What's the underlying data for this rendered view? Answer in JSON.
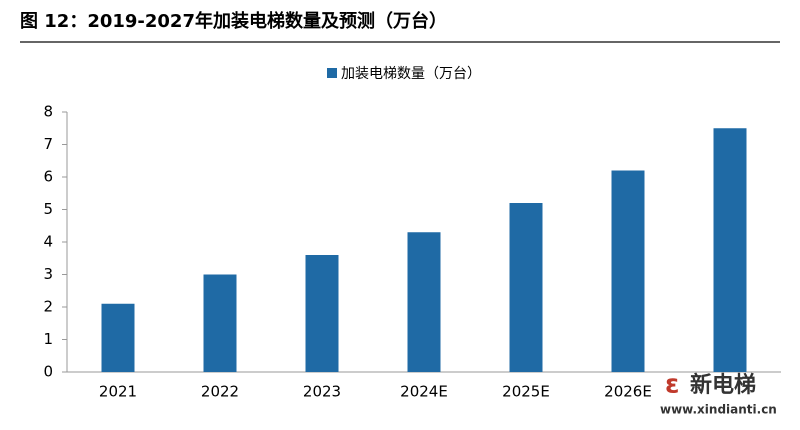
{
  "chart_data": {
    "type": "bar",
    "title": "图 12：2019-2027年加装电梯数量及预测（万台）",
    "categories": [
      "2021",
      "2022",
      "2023",
      "2024E",
      "2025E",
      "2026E",
      null
    ],
    "series": [
      {
        "name": "加装电梯数量（万台）",
        "color": "#1f6aa5",
        "values": [
          2.1,
          3.0,
          3.6,
          4.3,
          5.2,
          6.2,
          7.5
        ]
      }
    ],
    "ylim": [
      0,
      8
    ],
    "yticks": [
      0,
      1,
      2,
      3,
      4,
      5,
      6,
      7,
      8
    ],
    "grid": false,
    "legend": "top",
    "watermark": {
      "name": "新电梯",
      "url": "www.xindianti.cn"
    }
  }
}
